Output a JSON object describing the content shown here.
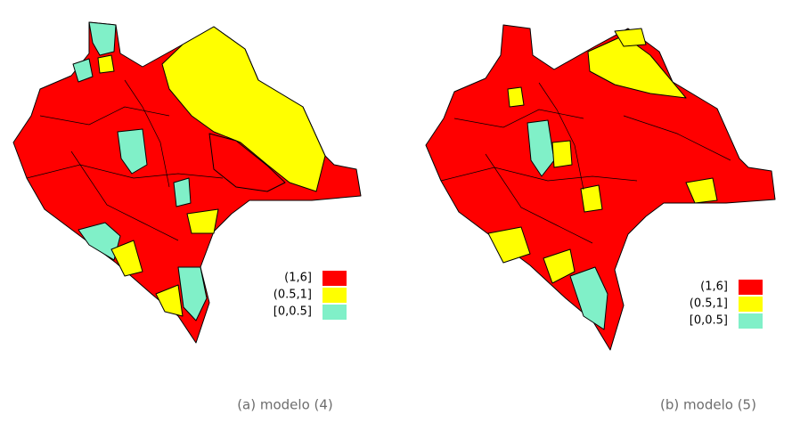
{
  "panels": [
    {
      "caption": "(a) modelo (4)",
      "legend": [
        {
          "label": "(1,6]",
          "color": "#ff0000"
        },
        {
          "label": "(0.5,1]",
          "color": "#ffff00"
        },
        {
          "label": "[0,0.5]",
          "color": "#80f0c8"
        }
      ]
    },
    {
      "caption": "(b) modelo (5)",
      "legend": [
        {
          "label": "(1,6]",
          "color": "#ff0000"
        },
        {
          "label": "(0.5,1]",
          "color": "#ffff00"
        },
        {
          "label": "[0,0.5]",
          "color": "#80f0c8"
        }
      ]
    }
  ]
}
